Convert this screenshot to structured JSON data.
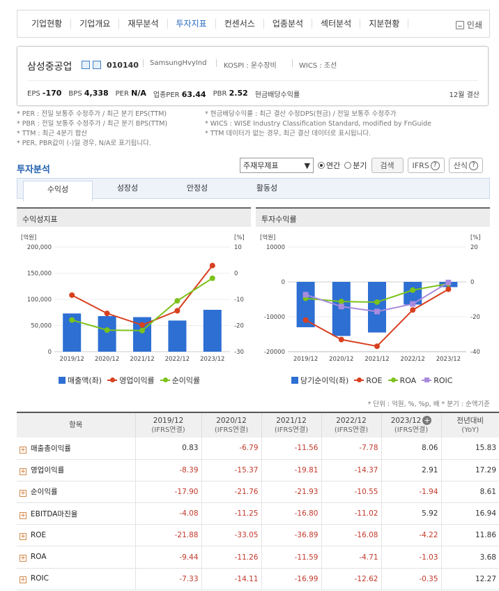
{
  "topnav": {
    "tabs": [
      "기업현황",
      "기업개요",
      "재무분석",
      "투자지표",
      "컨센서스",
      "업종분석",
      "섹터분석",
      "지분현황"
    ],
    "active": "투자지표",
    "print_label": "인쇄"
  },
  "company": {
    "name": "삼성중공업",
    "code": "010140",
    "eng_name": "SamsungHvyInd",
    "market": "KOSPI : 운수장비",
    "wics": "WICS : 조선",
    "stats": {
      "eps_label": "EPS",
      "eps": "-170",
      "bps_label": "BPS",
      "bps": "4,338",
      "per_label": "PER",
      "per": "N/A",
      "ind_per_label": "업종PER",
      "ind_per": "63.44",
      "pbr_label": "PBR",
      "pbr": "2.52",
      "div_label": "현금배당수익률",
      "div": "",
      "fy": "12월 결산"
    }
  },
  "notes": {
    "left": [
      "* PER : 전일 보통주 수정주가 / 최근 분기 EPS(TTM)",
      "* PBR : 전일 보통주 수정주가 / 최근 분기 BPS(TTM)",
      "* TTM : 최근 4분기 합산",
      "* PER, PBR값이 (-)일 경우, N/A로 표기됩니다."
    ],
    "right": [
      "* 현금배당수익률 : 최근 결산 수정DPS(현금) / 전일 보통주 수정주가",
      "* WICS : WISE Industry Classification Standard, modified by FnGuide",
      "* TTM 데이터가 없는 경우, 최근 결산 데이터로 표시됩니다."
    ]
  },
  "section": {
    "title": "투자분석",
    "select_value": "주재무제표",
    "radio_annual": "연간",
    "radio_quarter": "분기",
    "search_btn": "검색",
    "ifrs_btn": "IFRS",
    "formula_btn": "산식",
    "subtabs": [
      "수익성",
      "성장성",
      "안정성",
      "활동성"
    ]
  },
  "chart_left_title": "수익성지표",
  "chart_right_title": "투자수익률",
  "chart_data": [
    {
      "type": "bar",
      "categories": [
        "2019/12",
        "2020/12",
        "2021/12",
        "2022/12",
        "2023/12"
      ],
      "y_unit_left": "[억원]",
      "y_unit_right": "[%]",
      "ylim": [
        0,
        200000
      ],
      "y2lim": [
        -30,
        10
      ],
      "y_ticks": [
        "200,000",
        "150,000",
        "100,000",
        "50,000",
        "0"
      ],
      "y2_ticks": [
        "10",
        "0",
        "-10",
        "-20",
        "-30"
      ],
      "series": [
        {
          "name": "매출액(좌)",
          "kind": "bar",
          "axis": "left",
          "color": "#2d6fd3",
          "values": [
            73000,
            68000,
            66000,
            59500,
            80000
          ]
        },
        {
          "name": "영업이익률",
          "kind": "line",
          "axis": "right",
          "color": "#d8401f",
          "values": [
            -8.39,
            -15.37,
            -19.81,
            -14.37,
            2.91
          ]
        },
        {
          "name": "순이익률",
          "kind": "line",
          "axis": "right",
          "color": "#7cc21b",
          "values": [
            -17.9,
            -21.76,
            -21.93,
            -10.55,
            -1.94
          ]
        }
      ]
    },
    {
      "type": "bar",
      "categories": [
        "2019/12",
        "2020/12",
        "2021/12",
        "2022/12",
        "2023/12"
      ],
      "y_unit_left": "[억원]",
      "y_unit_right": "[%]",
      "ylim": [
        -20000,
        10000
      ],
      "y2lim": [
        -40,
        20
      ],
      "y_ticks": [
        "10000",
        "0",
        "-10000",
        "-20000"
      ],
      "y2_ticks": [
        "20",
        "0",
        "-20",
        "-40"
      ],
      "series": [
        {
          "name": "당기순이익(좌)",
          "kind": "bar",
          "axis": "left",
          "color": "#2d6fd3",
          "values": [
            -13000,
            -15500,
            -14500,
            -6500,
            -1500
          ]
        },
        {
          "name": "ROE",
          "kind": "line",
          "axis": "right",
          "color": "#d8401f",
          "values": [
            -21.88,
            -33.05,
            -36.89,
            -16.08,
            -4.22
          ]
        },
        {
          "name": "ROA",
          "kind": "line",
          "axis": "right",
          "color": "#7cc21b",
          "values": [
            -9.44,
            -11.26,
            -11.59,
            -4.71,
            -1.03
          ]
        },
        {
          "name": "ROIC",
          "kind": "line",
          "axis": "right",
          "color": "#a98bdd",
          "values": [
            -7.33,
            -14.11,
            -16.99,
            -12.62,
            -0.35
          ]
        }
      ]
    }
  ],
  "unit_note": "* 단위 : 억원, %, %p, 배      * 분기 : 순액기준",
  "table": {
    "header_item": "항목",
    "columns": [
      {
        "year": "2019/12",
        "basis": "(IFRS연결)"
      },
      {
        "year": "2020/12",
        "basis": "(IFRS연결)"
      },
      {
        "year": "2021/12",
        "basis": "(IFRS연결)"
      },
      {
        "year": "2022/12",
        "basis": "(IFRS연결)"
      },
      {
        "year": "2023/12",
        "basis": "(IFRS연결)"
      }
    ],
    "yoy_label": "전년대비",
    "yoy_sub": "(YoY)",
    "rows": [
      {
        "name": "매출총이익률",
        "values": [
          "0.83",
          "-6.79",
          "-11.56",
          "-7.78",
          "8.06"
        ],
        "yoy": "15.83"
      },
      {
        "name": "영업이익률",
        "values": [
          "-8.39",
          "-15.37",
          "-19.81",
          "-14.37",
          "2.91"
        ],
        "yoy": "17.29"
      },
      {
        "name": "순이익률",
        "values": [
          "-17.90",
          "-21.76",
          "-21.93",
          "-10.55",
          "-1.94"
        ],
        "yoy": "8.61"
      },
      {
        "name": "EBITDA마진율",
        "values": [
          "-4.08",
          "-11.25",
          "-16.80",
          "-11.02",
          "5.92"
        ],
        "yoy": "16.94"
      },
      {
        "name": "ROE",
        "values": [
          "-21.88",
          "-33.05",
          "-36.89",
          "-16.08",
          "-4.22"
        ],
        "yoy": "11.86"
      },
      {
        "name": "ROA",
        "values": [
          "-9.44",
          "-11.26",
          "-11.59",
          "-4.71",
          "-1.03"
        ],
        "yoy": "3.68"
      },
      {
        "name": "ROIC",
        "values": [
          "-7.33",
          "-14.11",
          "-16.99",
          "-12.62",
          "-0.35"
        ],
        "yoy": "12.27"
      }
    ]
  }
}
